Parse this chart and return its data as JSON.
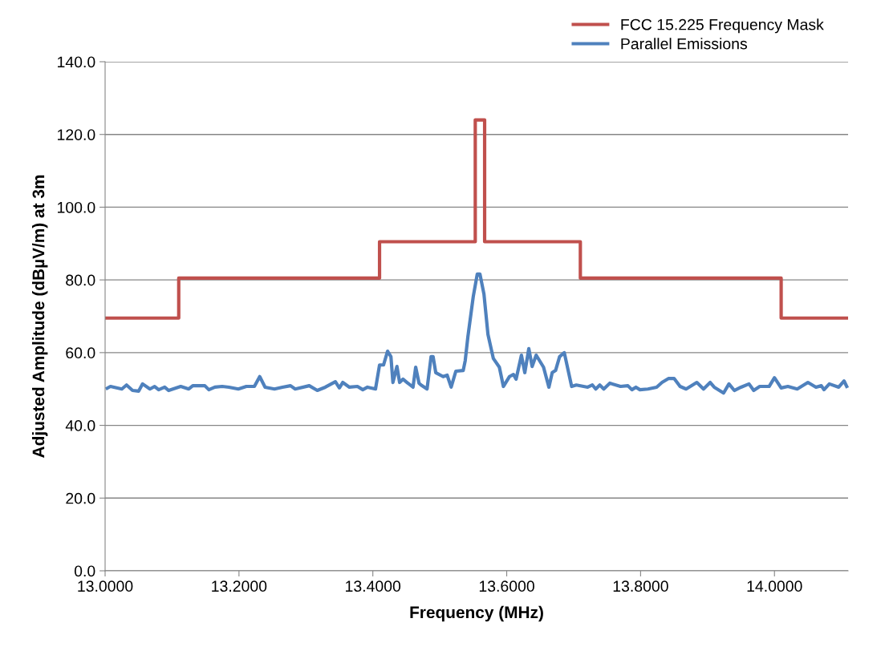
{
  "chart_data": {
    "type": "line",
    "xlabel": "Frequency (MHz)",
    "ylabel": "Adjusted Amplitude (dBµV/m) at 3m",
    "xlim": [
      13.0,
      14.11
    ],
    "xticks": [
      {
        "value": 13.0,
        "label": "13.0000"
      },
      {
        "value": 13.2,
        "label": "13.2000"
      },
      {
        "value": 13.4,
        "label": "13.4000"
      },
      {
        "value": 13.6,
        "label": "13.6000"
      },
      {
        "value": 13.8,
        "label": "13.8000"
      },
      {
        "value": 14.0,
        "label": "14.0000"
      }
    ],
    "ylim": [
      0,
      140
    ],
    "yticks": [
      {
        "value": 0,
        "label": "0.0"
      },
      {
        "value": 20,
        "label": "20.0"
      },
      {
        "value": 40,
        "label": "40.0"
      },
      {
        "value": 60,
        "label": "60.0"
      },
      {
        "value": 80,
        "label": "80.0"
      },
      {
        "value": 100,
        "label": "100.0"
      },
      {
        "value": 120,
        "label": "120.0"
      },
      {
        "value": 140,
        "label": "140.0"
      }
    ],
    "grid": "y",
    "legend": "top right",
    "marker": "none",
    "line_style": "solid",
    "series": [
      {
        "name": "FCC 15.225 Frequency Mask",
        "type": "step",
        "color": "#c0504d",
        "x": [
          13.0,
          13.11,
          13.41,
          13.553,
          13.567,
          13.71,
          14.01,
          14.11
        ],
        "values": [
          69.5,
          80.5,
          90.5,
          124,
          90.5,
          80.5,
          69.5,
          69.5
        ]
      },
      {
        "name": "Parallel Emissions",
        "color": "#4f81bd",
        "x": [
          13.001,
          13.008,
          13.025,
          13.032,
          13.041,
          13.05,
          13.056,
          13.067,
          13.074,
          13.08,
          13.089,
          13.095,
          13.113,
          13.125,
          13.131,
          13.149,
          13.155,
          13.164,
          13.175,
          13.185,
          13.199,
          13.211,
          13.223,
          13.231,
          13.239,
          13.253,
          13.265,
          13.277,
          13.284,
          13.305,
          13.317,
          13.329,
          13.344,
          13.35,
          13.355,
          13.365,
          13.377,
          13.385,
          13.392,
          13.404,
          13.41,
          13.416,
          13.422,
          13.427,
          13.43,
          13.436,
          13.44,
          13.445,
          13.451,
          13.46,
          13.464,
          13.469,
          13.472,
          13.481,
          13.487,
          13.49,
          13.494,
          13.505,
          13.511,
          13.517,
          13.524,
          13.535,
          13.538,
          13.542,
          13.55,
          13.556,
          13.56,
          13.566,
          13.572,
          13.58,
          13.589,
          13.595,
          13.604,
          13.61,
          13.614,
          13.622,
          13.627,
          13.633,
          13.638,
          13.644,
          13.655,
          13.663,
          13.668,
          13.673,
          13.679,
          13.686,
          13.697,
          13.704,
          13.721,
          13.728,
          13.733,
          13.739,
          13.745,
          13.754,
          13.77,
          13.781,
          13.787,
          13.793,
          13.799,
          13.811,
          13.824,
          13.832,
          13.842,
          13.85,
          13.859,
          13.868,
          13.884,
          13.894,
          13.904,
          13.91,
          13.924,
          13.932,
          13.94,
          13.95,
          13.962,
          13.969,
          13.978,
          13.992,
          14.0,
          14.01,
          14.02,
          14.034,
          14.05,
          14.062,
          14.07,
          14.074,
          14.082,
          14.096,
          14.104,
          14.109
        ],
        "values": [
          50.0,
          50.7,
          50.0,
          51.1,
          49.6,
          49.4,
          51.4,
          50.0,
          50.7,
          49.8,
          50.5,
          49.6,
          50.7,
          50.0,
          50.9,
          50.9,
          49.8,
          50.5,
          50.7,
          50.5,
          50.0,
          50.7,
          50.7,
          53.4,
          50.5,
          50.0,
          50.5,
          50.9,
          50.0,
          50.9,
          49.6,
          50.5,
          52.0,
          50.3,
          51.8,
          50.5,
          50.7,
          49.8,
          50.5,
          50.0,
          56.6,
          56.6,
          60.4,
          58.9,
          51.8,
          56.2,
          51.8,
          52.7,
          51.8,
          50.5,
          56.0,
          51.6,
          51.1,
          50.0,
          58.9,
          58.9,
          54.5,
          53.4,
          53.8,
          50.5,
          54.9,
          55.1,
          57.8,
          64.4,
          75.4,
          81.6,
          81.6,
          76.1,
          65.0,
          58.4,
          56.0,
          50.7,
          53.4,
          54.0,
          52.7,
          59.3,
          54.5,
          61.1,
          56.2,
          59.3,
          56.0,
          50.5,
          54.5,
          55.1,
          58.9,
          60.0,
          50.7,
          51.1,
          50.5,
          51.1,
          50.0,
          51.1,
          50.0,
          51.6,
          50.7,
          50.9,
          49.8,
          50.5,
          49.8,
          50.0,
          50.5,
          51.8,
          52.9,
          52.9,
          50.7,
          50.0,
          51.8,
          50.0,
          51.8,
          50.5,
          48.9,
          51.4,
          49.6,
          50.5,
          51.4,
          49.6,
          50.7,
          50.7,
          53.1,
          50.3,
          50.7,
          50.0,
          51.8,
          50.5,
          50.9,
          49.8,
          51.4,
          50.5,
          52.2,
          50.3
        ]
      }
    ]
  }
}
